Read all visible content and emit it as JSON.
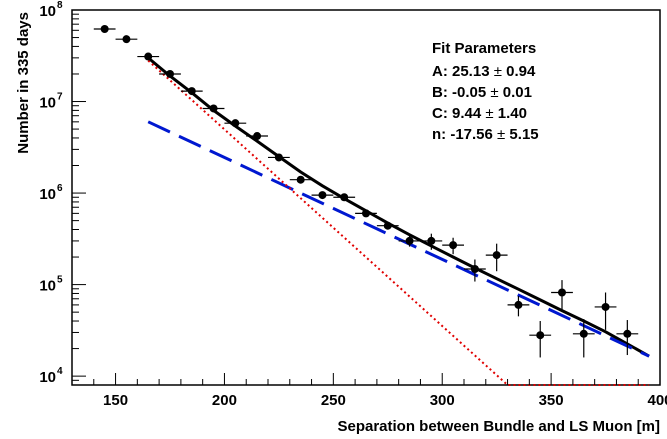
{
  "chart_data": {
    "type": "scatter",
    "xlabel": "Separation between Bundle and LS Muon [m]",
    "ylabel": "Number in 335 days",
    "xlim": [
      130,
      400
    ],
    "ylim": [
      8000,
      100000000
    ],
    "y_scale": "log",
    "grid": false,
    "x_ticks": [
      {
        "value": 150,
        "label": "150"
      },
      {
        "value": 200,
        "label": "200"
      },
      {
        "value": 250,
        "label": "250"
      },
      {
        "value": 300,
        "label": "300"
      },
      {
        "value": 350,
        "label": "350"
      },
      {
        "value": 400,
        "label": "400"
      }
    ],
    "y_ticks": [
      {
        "value": 10000,
        "base": "10",
        "exp": "4"
      },
      {
        "value": 100000,
        "base": "10",
        "exp": "5"
      },
      {
        "value": 1000000,
        "base": "10",
        "exp": "6"
      },
      {
        "value": 10000000,
        "base": "10",
        "exp": "7"
      },
      {
        "value": 100000000,
        "base": "10",
        "exp": "8"
      }
    ],
    "series": [
      {
        "type": "points",
        "color": "#000000",
        "x_halfwidth": 5,
        "x": [
          145,
          155,
          165,
          175,
          185,
          195,
          205,
          215,
          225,
          235,
          245,
          255,
          265,
          275,
          285,
          295,
          305,
          315,
          325,
          335,
          345,
          355,
          365,
          375,
          385
        ],
        "y": [
          62000000,
          48000000,
          31000000,
          20000000,
          13000000,
          8400000,
          5800000,
          4200000,
          2450000,
          1400000,
          950000,
          900000,
          600000,
          440000,
          300000,
          300000,
          270000,
          148000,
          210000,
          60000,
          28000,
          82000,
          29000,
          57000,
          29000
        ],
        "y_err": [
          0,
          0,
          0,
          0,
          0,
          0,
          0,
          0,
          0,
          0,
          0,
          0,
          0,
          0,
          40000,
          60000,
          55000,
          40000,
          70000,
          15000,
          12000,
          30000,
          13000,
          25000,
          12000
        ]
      },
      {
        "type": "line",
        "style": "solid",
        "color": "#000000",
        "x": [
          165,
          175,
          185,
          195,
          205,
          215,
          225,
          235,
          245,
          255,
          265,
          275,
          285,
          295,
          305,
          315,
          325,
          335,
          345,
          355,
          365,
          375,
          385,
          395
        ],
        "y": [
          30000000,
          19000000,
          12500000,
          8000000,
          5400000,
          3700000,
          2500000,
          1700000,
          1200000,
          870000,
          640000,
          470000,
          350000,
          265000,
          200000,
          152000,
          116000,
          89000,
          68000,
          52000,
          40000,
          30500,
          22500,
          16500
        ]
      },
      {
        "type": "line",
        "style": "dashed",
        "color": "#0018d0",
        "x": [
          165,
          395
        ],
        "y": [
          6000000,
          16500
        ]
      },
      {
        "type": "line",
        "style": "dotted",
        "color": "#e00000",
        "x": [
          165,
          330,
          395
        ],
        "y": [
          28000000,
          8000,
          8000
        ]
      }
    ],
    "legend": {
      "position": "top-right",
      "title": "Fit Parameters",
      "lines": [
        {
          "name": "A:",
          "value": "25.13",
          "err": "0.94"
        },
        {
          "name": "B:",
          "value": "-0.05",
          "err": "0.01"
        },
        {
          "name": "C:",
          "value": "9.44",
          "err": "1.40"
        },
        {
          "name": "n:",
          "value": "-17.56",
          "err": "5.15"
        }
      ],
      "pm": "±"
    }
  }
}
